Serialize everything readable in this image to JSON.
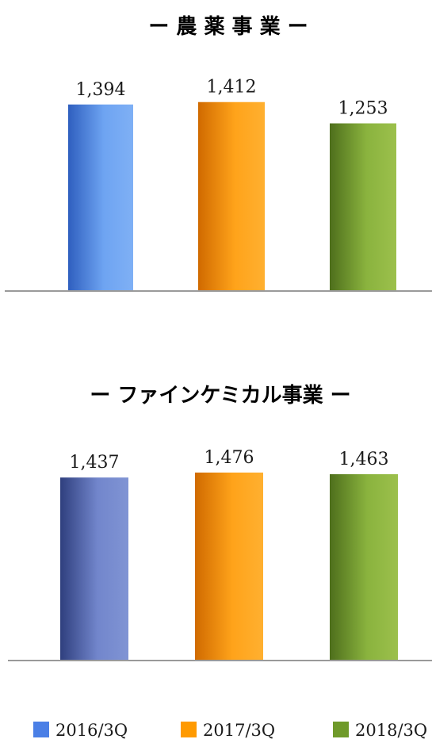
{
  "chart_data": [
    {
      "type": "bar",
      "title": "ー 農 薬 事 業 ー",
      "categories": [
        "2016/3Q",
        "2017/3Q",
        "2018/3Q"
      ],
      "values": [
        1394,
        1412,
        1253
      ],
      "value_labels": [
        "1,394",
        "1,412",
        "1,253"
      ],
      "ylim": [
        0,
        1600
      ],
      "grid": false
    },
    {
      "type": "bar",
      "title": "ー ファインケミカル事業 ー",
      "categories": [
        "2016/3Q",
        "2017/3Q",
        "2018/3Q"
      ],
      "values": [
        1437,
        1476,
        1463
      ],
      "value_labels": [
        "1,437",
        "1,476",
        "1,463"
      ],
      "ylim": [
        0,
        1650
      ],
      "grid": false
    }
  ],
  "legend": {
    "placement": "bottom",
    "items": [
      {
        "label": "2016/3Q",
        "color": "#4a7fe6"
      },
      {
        "label": "2017/3Q",
        "color": "#ff9a00"
      },
      {
        "label": "2018/3Q",
        "color": "#6f9a2a"
      }
    ]
  },
  "colors": {
    "chart1": [
      "#5b8ee8",
      "#ff9800",
      "#76a030"
    ],
    "chart2": [
      "#5a6fb8",
      "#ff9800",
      "#76a030"
    ],
    "baseline": "#9a9a9a"
  }
}
